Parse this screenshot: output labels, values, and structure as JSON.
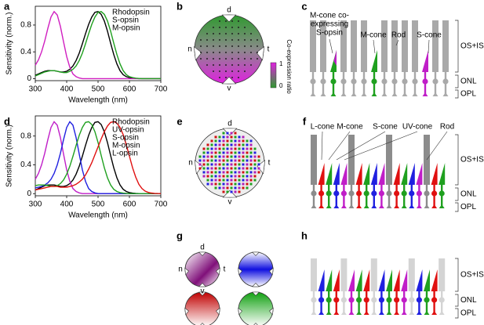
{
  "chart_data": [
    {
      "type": "line",
      "label": "a",
      "xlabel": "Wavelength (nm)",
      "ylabel": "Sensitivity (norm.)",
      "x": [
        300,
        310,
        320,
        330,
        340,
        350,
        360,
        370,
        380,
        390,
        400,
        410,
        420,
        430,
        440,
        450,
        460,
        470,
        480,
        490,
        500,
        510,
        520,
        530,
        540,
        550,
        560,
        570,
        580,
        590,
        600,
        610,
        620,
        630,
        640,
        650,
        660,
        670,
        680,
        690,
        700
      ],
      "xlim": [
        300,
        700
      ],
      "xticks": [
        300,
        400,
        500,
        600,
        700
      ],
      "ylim": [
        -0.03,
        1.08
      ],
      "yticks": [
        0,
        0.4,
        0.8
      ],
      "legend": "upper right",
      "series": [
        {
          "name": "Rhodopsin",
          "color": "#000000",
          "values": [
            0.05,
            0.07,
            0.09,
            0.11,
            0.12,
            0.12,
            0.12,
            0.11,
            0.1,
            0.1,
            0.11,
            0.14,
            0.19,
            0.27,
            0.38,
            0.52,
            0.67,
            0.81,
            0.92,
            0.99,
            1.0,
            0.96,
            0.86,
            0.71,
            0.53,
            0.36,
            0.22,
            0.12,
            0.06,
            0.03,
            0.015,
            0.007,
            0.003,
            0,
            0,
            0,
            0,
            0,
            0,
            0,
            0
          ]
        },
        {
          "name": "S-opsin",
          "color": "#d01ec0",
          "values": [
            0.2,
            0.28,
            0.4,
            0.56,
            0.75,
            0.92,
            1.0,
            0.95,
            0.78,
            0.55,
            0.33,
            0.17,
            0.07,
            0.03,
            0.01,
            0,
            0,
            0,
            0,
            0,
            0,
            0,
            0,
            0,
            0,
            0,
            0,
            0,
            0,
            0,
            0,
            0,
            0,
            0,
            0,
            0,
            0,
            0,
            0,
            0,
            0
          ]
        },
        {
          "name": "M-opsin",
          "color": "#1fa01f",
          "values": [
            0.04,
            0.06,
            0.08,
            0.1,
            0.11,
            0.12,
            0.12,
            0.11,
            0.1,
            0.09,
            0.09,
            0.11,
            0.14,
            0.19,
            0.27,
            0.38,
            0.52,
            0.67,
            0.81,
            0.92,
            0.99,
            1.0,
            0.96,
            0.86,
            0.71,
            0.53,
            0.36,
            0.22,
            0.12,
            0.06,
            0.03,
            0.015,
            0.007,
            0.003,
            0,
            0,
            0,
            0,
            0,
            0,
            0
          ]
        }
      ]
    },
    {
      "type": "line",
      "label": "d",
      "xlabel": "Wavelength (nm)",
      "ylabel": "Sensitivity (norm.)",
      "x": [
        300,
        310,
        320,
        330,
        340,
        350,
        360,
        370,
        380,
        390,
        400,
        410,
        420,
        430,
        440,
        450,
        460,
        470,
        480,
        490,
        500,
        510,
        520,
        530,
        540,
        550,
        560,
        570,
        580,
        590,
        600,
        610,
        620,
        630,
        640,
        650,
        660,
        670,
        680,
        690,
        700
      ],
      "xlim": [
        300,
        700
      ],
      "xticks": [
        300,
        400,
        500,
        600,
        700
      ],
      "ylim": [
        -0.03,
        1.08
      ],
      "yticks": [
        0,
        0.4,
        0.8
      ],
      "legend": "upper right",
      "series": [
        {
          "name": "Rhodopsin",
          "color": "#000000",
          "values": [
            0.05,
            0.07,
            0.09,
            0.11,
            0.12,
            0.12,
            0.12,
            0.11,
            0.1,
            0.1,
            0.11,
            0.14,
            0.19,
            0.27,
            0.38,
            0.52,
            0.67,
            0.81,
            0.92,
            0.99,
            1.0,
            0.96,
            0.86,
            0.71,
            0.53,
            0.36,
            0.22,
            0.12,
            0.06,
            0.03,
            0.015,
            0.007,
            0.003,
            0,
            0,
            0,
            0,
            0,
            0,
            0,
            0
          ]
        },
        {
          "name": "UV-opsin",
          "color": "#c01ec8",
          "values": [
            0.2,
            0.28,
            0.4,
            0.56,
            0.75,
            0.92,
            1.0,
            0.95,
            0.78,
            0.55,
            0.33,
            0.17,
            0.07,
            0.03,
            0.01,
            0,
            0,
            0,
            0,
            0,
            0,
            0,
            0,
            0,
            0,
            0,
            0,
            0,
            0,
            0,
            0,
            0,
            0,
            0,
            0,
            0,
            0,
            0,
            0,
            0,
            0
          ]
        },
        {
          "name": "S-opsin",
          "color": "#2020e0",
          "values": [
            0.08,
            0.09,
            0.1,
            0.12,
            0.15,
            0.2,
            0.28,
            0.4,
            0.56,
            0.75,
            0.92,
            1.0,
            0.95,
            0.78,
            0.55,
            0.33,
            0.17,
            0.07,
            0.03,
            0.01,
            0,
            0,
            0,
            0,
            0,
            0,
            0,
            0,
            0,
            0,
            0,
            0,
            0,
            0,
            0,
            0,
            0,
            0,
            0,
            0,
            0
          ]
        },
        {
          "name": "M-opsin",
          "color": "#1fa01f",
          "values": [
            0.11,
            0.12,
            0.12,
            0.12,
            0.11,
            0.1,
            0.1,
            0.11,
            0.14,
            0.19,
            0.27,
            0.38,
            0.52,
            0.67,
            0.81,
            0.92,
            0.99,
            1.0,
            0.96,
            0.86,
            0.71,
            0.53,
            0.36,
            0.22,
            0.12,
            0.06,
            0.03,
            0.015,
            0.007,
            0.003,
            0,
            0,
            0,
            0,
            0,
            0,
            0,
            0,
            0,
            0,
            0
          ]
        },
        {
          "name": "L-opsin",
          "color": "#e01010",
          "values": [
            0.05,
            0.06,
            0.07,
            0.08,
            0.09,
            0.1,
            0.1,
            0.1,
            0.09,
            0.09,
            0.09,
            0.1,
            0.11,
            0.13,
            0.16,
            0.2,
            0.26,
            0.34,
            0.43,
            0.54,
            0.65,
            0.76,
            0.86,
            0.94,
            0.99,
            1.0,
            0.98,
            0.92,
            0.82,
            0.68,
            0.52,
            0.36,
            0.23,
            0.13,
            0.07,
            0.035,
            0.017,
            0.008,
            0.004,
            0.002,
            0
          ]
        }
      ]
    }
  ],
  "panels": {
    "b": {
      "label": "b",
      "orientation": [
        "d",
        "v",
        "n",
        "t"
      ],
      "colorbar_title": "Co-expression ratio",
      "colorbar_ticks": [
        "1",
        "0"
      ]
    },
    "c": {
      "label": "c",
      "coexpress_label": [
        "M-cone co-",
        "expressing",
        "S-opsin"
      ],
      "cell_labels": [
        "M-cone",
        "Rod",
        "S-cone"
      ],
      "layers": [
        "OS+IS",
        "ONL",
        "OPL"
      ]
    },
    "e": {
      "label": "e",
      "orientation": [
        "d",
        "v",
        "n",
        "t"
      ]
    },
    "f": {
      "label": "f",
      "cell_labels": [
        "L-cone",
        "M-cone",
        "S-cone",
        "UV-cone",
        "Rod"
      ],
      "layers": [
        "OS+IS",
        "ONL",
        "OPL"
      ]
    },
    "g": {
      "label": "g",
      "orientation": [
        "d",
        "v",
        "n",
        "t"
      ]
    },
    "h": {
      "label": "h",
      "layers": [
        "OS+IS",
        "ONL",
        "OPL"
      ]
    }
  }
}
